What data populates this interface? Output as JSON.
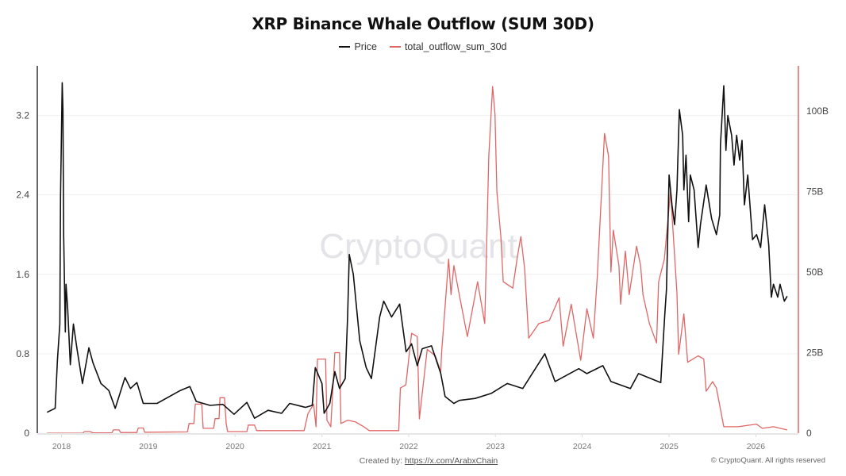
{
  "chart_data": {
    "type": "line",
    "title": "XRP Binance Whale Outflow (SUM 30D)",
    "legend_position": "top-center",
    "grid": true,
    "xlim": [
      "2017-09-21",
      "2026-06-29"
    ],
    "x_ticks": [
      "2018",
      "2019",
      "2020",
      "2021",
      "2022",
      "2023",
      "2024",
      "2025",
      "2026"
    ],
    "y_left": {
      "lim": [
        0,
        3.7
      ],
      "ticks": [
        0,
        0.8,
        1.6,
        2.4,
        3.2
      ],
      "tick_labels": [
        "0",
        "0.8",
        "1.6",
        "2.4",
        "3.2"
      ]
    },
    "y_right": {
      "lim": [
        0,
        114
      ],
      "ticks": [
        0,
        25,
        50,
        75,
        100
      ],
      "tick_labels": [
        "0",
        "25B",
        "50B",
        "75B",
        "100B"
      ],
      "unit": "B"
    },
    "series": [
      {
        "name": "Price",
        "axis": "left",
        "color": "#111111",
        "points": [
          [
            "2017-11-01",
            0.21
          ],
          [
            "2017-12-05",
            0.25
          ],
          [
            "2017-12-15",
            0.74
          ],
          [
            "2017-12-25",
            1.1
          ],
          [
            "2017-12-28",
            2.4
          ],
          [
            "2018-01-04",
            3.53
          ],
          [
            "2018-01-07",
            3.26
          ],
          [
            "2018-01-10",
            2.0
          ],
          [
            "2018-01-17",
            1.02
          ],
          [
            "2018-01-20",
            1.5
          ],
          [
            "2018-01-27",
            1.25
          ],
          [
            "2018-02-07",
            0.69
          ],
          [
            "2018-02-20",
            1.1
          ],
          [
            "2018-03-07",
            0.85
          ],
          [
            "2018-03-30",
            0.5
          ],
          [
            "2018-04-26",
            0.86
          ],
          [
            "2018-05-13",
            0.71
          ],
          [
            "2018-06-16",
            0.5
          ],
          [
            "2018-07-19",
            0.43
          ],
          [
            "2018-08-15",
            0.25
          ],
          [
            "2018-09-25",
            0.56
          ],
          [
            "2018-10-18",
            0.45
          ],
          [
            "2018-11-14",
            0.51
          ],
          [
            "2018-12-11",
            0.3
          ],
          [
            "2019-02-07",
            0.3
          ],
          [
            "2019-05-16",
            0.43
          ],
          [
            "2019-06-25",
            0.47
          ],
          [
            "2019-07-22",
            0.32
          ],
          [
            "2019-09-18",
            0.28
          ],
          [
            "2019-11-11",
            0.29
          ],
          [
            "2019-12-28",
            0.19
          ],
          [
            "2020-02-20",
            0.31
          ],
          [
            "2020-03-23",
            0.15
          ],
          [
            "2020-05-19",
            0.23
          ],
          [
            "2020-07-15",
            0.2
          ],
          [
            "2020-08-18",
            0.3
          ],
          [
            "2020-10-24",
            0.26
          ],
          [
            "2020-11-21",
            0.28
          ],
          [
            "2020-12-04",
            0.66
          ],
          [
            "2021-01-01",
            0.5
          ],
          [
            "2021-01-10",
            0.2
          ],
          [
            "2021-02-03",
            0.3
          ],
          [
            "2021-02-24",
            0.62
          ],
          [
            "2021-03-16",
            0.45
          ],
          [
            "2021-04-09",
            0.55
          ],
          [
            "2021-04-19",
            1.17
          ],
          [
            "2021-04-26",
            1.8
          ],
          [
            "2021-05-13",
            1.6
          ],
          [
            "2021-06-09",
            0.93
          ],
          [
            "2021-07-06",
            0.66
          ],
          [
            "2021-07-28",
            0.55
          ],
          [
            "2021-09-01",
            1.17
          ],
          [
            "2021-09-18",
            1.33
          ],
          [
            "2021-10-21",
            1.17
          ],
          [
            "2021-11-24",
            1.3
          ],
          [
            "2021-12-21",
            0.82
          ],
          [
            "2022-01-13",
            0.9
          ],
          [
            "2022-02-06",
            0.68
          ],
          [
            "2022-02-27",
            0.85
          ],
          [
            "2022-04-07",
            0.88
          ],
          [
            "2022-05-16",
            0.6
          ],
          [
            "2022-06-03",
            0.37
          ],
          [
            "2022-07-10",
            0.3
          ],
          [
            "2022-08-02",
            0.33
          ],
          [
            "2022-10-08",
            0.35
          ],
          [
            "2022-12-14",
            0.4
          ],
          [
            "2023-02-20",
            0.5
          ],
          [
            "2023-04-26",
            0.45
          ],
          [
            "2023-07-28",
            0.8
          ],
          [
            "2023-09-09",
            0.52
          ],
          [
            "2023-12-18",
            0.65
          ],
          [
            "2024-01-21",
            0.6
          ],
          [
            "2024-03-28",
            0.68
          ],
          [
            "2024-05-01",
            0.52
          ],
          [
            "2024-07-22",
            0.45
          ],
          [
            "2024-08-25",
            0.6
          ],
          [
            "2024-11-27",
            0.51
          ],
          [
            "2024-12-14",
            1.2
          ],
          [
            "2024-12-21",
            1.45
          ],
          [
            "2025-01-01",
            2.6
          ],
          [
            "2025-01-13",
            2.3
          ],
          [
            "2025-01-24",
            2.1
          ],
          [
            "2025-02-03",
            2.45
          ],
          [
            "2025-02-13",
            3.26
          ],
          [
            "2025-02-27",
            3.0
          ],
          [
            "2025-03-04",
            2.45
          ],
          [
            "2025-03-13",
            2.8
          ],
          [
            "2025-03-24",
            2.13
          ],
          [
            "2025-03-31",
            2.6
          ],
          [
            "2025-04-16",
            2.45
          ],
          [
            "2025-05-03",
            1.87
          ],
          [
            "2025-05-13",
            2.1
          ],
          [
            "2025-06-06",
            2.5
          ],
          [
            "2025-06-29",
            2.16
          ],
          [
            "2025-07-19",
            2.0
          ],
          [
            "2025-08-02",
            2.2
          ],
          [
            "2025-08-05",
            2.9
          ],
          [
            "2025-08-19",
            3.5
          ],
          [
            "2025-08-28",
            2.85
          ],
          [
            "2025-09-05",
            3.2
          ],
          [
            "2025-09-21",
            3.0
          ],
          [
            "2025-10-01",
            2.7
          ],
          [
            "2025-10-12",
            3.0
          ],
          [
            "2025-10-25",
            2.75
          ],
          [
            "2025-11-04",
            2.95
          ],
          [
            "2025-11-14",
            2.3
          ],
          [
            "2025-11-28",
            2.6
          ],
          [
            "2025-12-18",
            1.95
          ],
          [
            "2026-01-04",
            2.0
          ],
          [
            "2026-01-21",
            1.87
          ],
          [
            "2026-02-07",
            2.3
          ],
          [
            "2026-02-24",
            1.9
          ],
          [
            "2026-03-07",
            1.37
          ],
          [
            "2026-03-16",
            1.5
          ],
          [
            "2026-04-03",
            1.37
          ],
          [
            "2026-04-13",
            1.5
          ],
          [
            "2026-05-01",
            1.33
          ],
          [
            "2026-05-13",
            1.38
          ]
        ]
      },
      {
        "name": "total_outflow_sum_30d",
        "axis": "right",
        "color": "#e06666",
        "points": [
          [
            "2017-11-01",
            0
          ],
          [
            "2018-04-01",
            0
          ],
          [
            "2018-04-07",
            0.5
          ],
          [
            "2018-05-01",
            0.5
          ],
          [
            "2018-05-13",
            0.1
          ],
          [
            "2018-08-01",
            0.1
          ],
          [
            "2018-08-07",
            1
          ],
          [
            "2018-08-31",
            1
          ],
          [
            "2018-09-07",
            0.2
          ],
          [
            "2018-11-14",
            0.2
          ],
          [
            "2018-11-20",
            1.6
          ],
          [
            "2018-12-11",
            1.6
          ],
          [
            "2018-12-17",
            0.3
          ],
          [
            "2019-06-15",
            0.4
          ],
          [
            "2019-06-22",
            3
          ],
          [
            "2019-07-12",
            3
          ],
          [
            "2019-07-18",
            9
          ],
          [
            "2019-08-14",
            9
          ],
          [
            "2019-08-20",
            1.5
          ],
          [
            "2019-10-03",
            1.5
          ],
          [
            "2019-10-09",
            4.5
          ],
          [
            "2019-10-26",
            4.5
          ],
          [
            "2019-10-30",
            11
          ],
          [
            "2019-11-18",
            11
          ],
          [
            "2019-11-25",
            3
          ],
          [
            "2019-12-01",
            0.5
          ],
          [
            "2020-02-20",
            0.5
          ],
          [
            "2020-02-26",
            2.5
          ],
          [
            "2020-03-23",
            2.5
          ],
          [
            "2020-04-01",
            0.8
          ],
          [
            "2020-10-18",
            0.8
          ],
          [
            "2020-11-03",
            6
          ],
          [
            "2020-11-27",
            9
          ],
          [
            "2020-12-07",
            2
          ],
          [
            "2020-12-13",
            23
          ],
          [
            "2021-01-16",
            23
          ],
          [
            "2021-01-22",
            4
          ],
          [
            "2021-02-07",
            2
          ],
          [
            "2021-02-24",
            25
          ],
          [
            "2021-03-16",
            25
          ],
          [
            "2021-03-22",
            3
          ],
          [
            "2021-04-19",
            4
          ],
          [
            "2021-05-22",
            3.5
          ],
          [
            "2021-06-26",
            2
          ],
          [
            "2021-07-19",
            0.8
          ],
          [
            "2021-11-20",
            0.8
          ],
          [
            "2021-11-27",
            14
          ],
          [
            "2021-12-20",
            15
          ],
          [
            "2022-01-13",
            31
          ],
          [
            "2022-02-06",
            30
          ],
          [
            "2022-02-15",
            4.4
          ],
          [
            "2022-03-20",
            26
          ],
          [
            "2022-04-23",
            24
          ],
          [
            "2022-05-16",
            19
          ],
          [
            "2022-05-19",
            24.5
          ],
          [
            "2022-06-18",
            54
          ],
          [
            "2022-06-28",
            43
          ],
          [
            "2022-07-10",
            52
          ],
          [
            "2022-08-02",
            43
          ],
          [
            "2022-09-05",
            30
          ],
          [
            "2022-10-18",
            47
          ],
          [
            "2022-11-17",
            34
          ],
          [
            "2022-12-04",
            86
          ],
          [
            "2022-12-20",
            107.6
          ],
          [
            "2022-12-30",
            99
          ],
          [
            "2023-01-07",
            75
          ],
          [
            "2023-01-24",
            61
          ],
          [
            "2023-02-03",
            47
          ],
          [
            "2023-03-15",
            45
          ],
          [
            "2023-04-04",
            55
          ],
          [
            "2023-04-18",
            61
          ],
          [
            "2023-05-04",
            51
          ],
          [
            "2023-05-21",
            29.5
          ],
          [
            "2023-07-03",
            34
          ],
          [
            "2023-08-16",
            35
          ],
          [
            "2023-09-26",
            42
          ],
          [
            "2023-10-13",
            27
          ],
          [
            "2023-11-16",
            40
          ],
          [
            "2023-12-26",
            22.6
          ],
          [
            "2024-01-21",
            38.6
          ],
          [
            "2024-02-17",
            29.5
          ],
          [
            "2024-03-05",
            49
          ],
          [
            "2024-04-04",
            93
          ],
          [
            "2024-04-21",
            86
          ],
          [
            "2024-05-01",
            50
          ],
          [
            "2024-05-11",
            63
          ],
          [
            "2024-06-04",
            52
          ],
          [
            "2024-06-11",
            40
          ],
          [
            "2024-07-01",
            56.5
          ],
          [
            "2024-07-17",
            43
          ],
          [
            "2024-08-17",
            58
          ],
          [
            "2024-09-03",
            52
          ],
          [
            "2024-09-13",
            43
          ],
          [
            "2024-10-10",
            34
          ],
          [
            "2024-11-09",
            28
          ],
          [
            "2024-11-18",
            47
          ],
          [
            "2024-12-12",
            54
          ],
          [
            "2025-01-07",
            75
          ],
          [
            "2025-02-03",
            43.5
          ],
          [
            "2025-02-10",
            24.5
          ],
          [
            "2025-03-04",
            37
          ],
          [
            "2025-03-20",
            22
          ],
          [
            "2025-05-03",
            24
          ],
          [
            "2025-05-27",
            23
          ],
          [
            "2025-06-06",
            13
          ],
          [
            "2025-07-03",
            16
          ],
          [
            "2025-07-19",
            14
          ],
          [
            "2025-08-19",
            2
          ],
          [
            "2025-10-18",
            2
          ],
          [
            "2026-01-04",
            2.8
          ],
          [
            "2026-01-28",
            1.5
          ],
          [
            "2026-03-16",
            2
          ],
          [
            "2026-05-13",
            1
          ]
        ]
      }
    ]
  },
  "legend": {
    "price": "Price",
    "outflow": "total_outflow_sum_30d"
  },
  "watermark": "CryptoQuant",
  "footer": {
    "created_by_label": "Created by:",
    "created_by_link": "https://x.com/ArabxChain",
    "copyright": "© CryptoQuant. All rights reserved"
  },
  "colors": {
    "price": "#111111",
    "outflow": "#e06666",
    "grid": "#f0f0f0",
    "axis_left": "#333333",
    "axis_right": "#e06666"
  }
}
